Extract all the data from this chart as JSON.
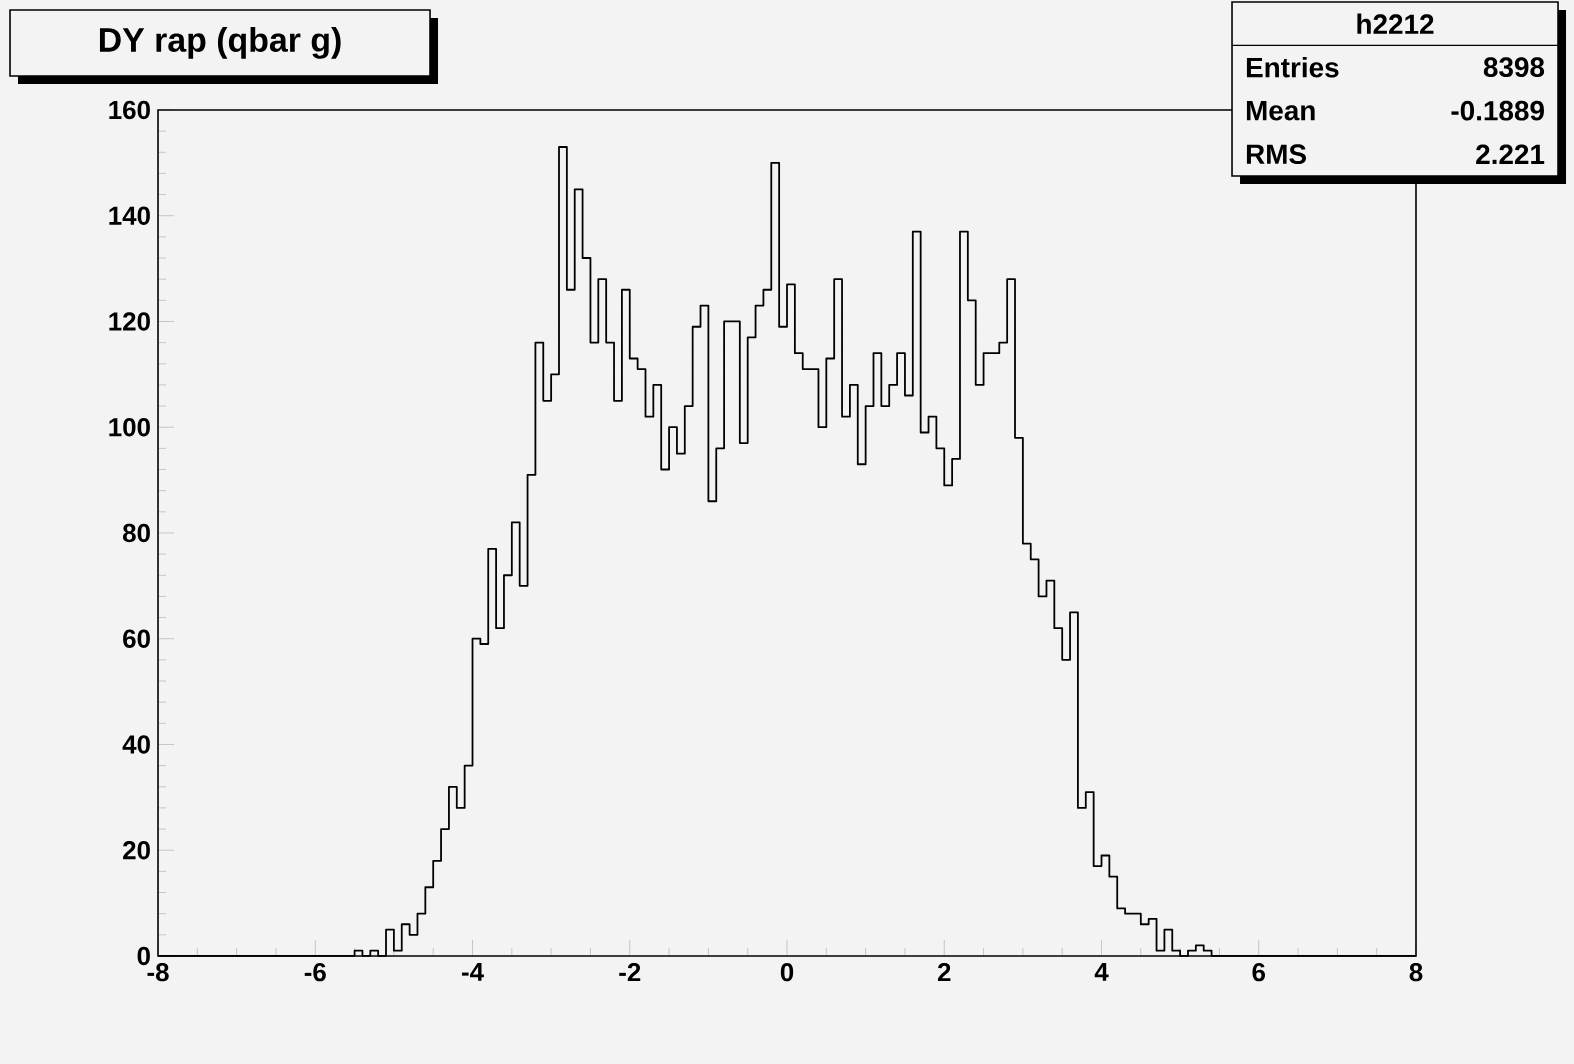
{
  "chart_data": {
    "type": "histogram",
    "title": "DY rap (qbar g)",
    "annotations": [
      "h2212",
      "Entries",
      "8398",
      "Mean",
      "-0.1889",
      "RMS",
      "2.221"
    ],
    "bins": [
      -8.0,
      -7.9,
      -7.8,
      -7.7,
      -7.6,
      -7.5,
      -7.4,
      -7.3,
      -7.2,
      -7.1,
      -7.0,
      -6.9,
      -6.8,
      -6.7,
      -6.6,
      -6.5,
      -6.4,
      -6.3,
      -6.2,
      -6.1,
      -6.0,
      -5.9,
      -5.8,
      -5.7,
      -5.6,
      -5.5,
      -5.4,
      -5.3,
      -5.2,
      -5.1,
      -5.0,
      -4.9,
      -4.8,
      -4.7,
      -4.6,
      -4.5,
      -4.4,
      -4.3,
      -4.2,
      -4.1,
      -4.0,
      -3.9,
      -3.8,
      -3.7,
      -3.6,
      -3.5,
      -3.4,
      -3.3,
      -3.2,
      -3.1,
      -3.0,
      -2.9,
      -2.8,
      -2.7,
      -2.6,
      -2.5,
      -2.4,
      -2.3,
      -2.2,
      -2.1,
      -2.0,
      -1.9,
      -1.8,
      -1.7,
      -1.6,
      -1.5,
      -1.4,
      -1.3,
      -1.2,
      -1.1,
      -1.0,
      -0.9,
      -0.8,
      -0.7,
      -0.6,
      -0.5,
      -0.4,
      -0.3,
      -0.2,
      -0.1,
      0.0,
      0.1,
      0.2,
      0.3,
      0.4,
      0.5,
      0.6,
      0.7,
      0.8,
      0.9,
      1.0,
      1.1,
      1.2,
      1.3,
      1.4,
      1.5,
      1.6,
      1.7,
      1.8,
      1.9,
      2.0,
      2.1,
      2.2,
      2.3,
      2.4,
      2.5,
      2.6,
      2.7,
      2.8,
      2.9,
      3.0,
      3.1,
      3.2,
      3.3,
      3.4,
      3.5,
      3.6,
      3.7,
      3.8,
      3.9,
      4.0,
      4.1,
      4.2,
      4.3,
      4.4,
      4.5,
      4.6,
      4.7,
      4.8,
      4.9,
      5.0,
      5.1,
      5.2,
      5.3,
      5.4,
      5.5,
      5.6,
      5.7,
      5.8,
      5.9,
      6.0,
      6.1,
      6.2,
      6.3,
      6.4,
      6.5,
      6.6,
      6.7,
      6.8,
      6.9,
      7.0,
      7.1,
      7.2,
      7.3,
      7.4,
      7.5,
      7.6,
      7.7,
      7.8,
      7.9,
      8.0
    ],
    "values": [
      0,
      0,
      0,
      0,
      0,
      0,
      0,
      0,
      0,
      0,
      0,
      0,
      0,
      0,
      0,
      0,
      0,
      0,
      0,
      0,
      0,
      0,
      0,
      0,
      0,
      1,
      0,
      1,
      0,
      5,
      1,
      6,
      4,
      8,
      13,
      18,
      24,
      32,
      28,
      36,
      60,
      59,
      77,
      62,
      72,
      82,
      70,
      91,
      116,
      105,
      110,
      153,
      126,
      145,
      132,
      116,
      128,
      116,
      105,
      126,
      113,
      111,
      102,
      108,
      92,
      100,
      95,
      104,
      119,
      123,
      86,
      96,
      120,
      120,
      97,
      117,
      123,
      126,
      150,
      119,
      127,
      114,
      111,
      111,
      100,
      113,
      128,
      102,
      108,
      93,
      104,
      114,
      104,
      108,
      114,
      106,
      137,
      99,
      102,
      96,
      89,
      94,
      137,
      124,
      108,
      114,
      114,
      116,
      128,
      98,
      78,
      75,
      68,
      71,
      62,
      56,
      65,
      28,
      31,
      17,
      19,
      15,
      9,
      8,
      8,
      6,
      7,
      1,
      5,
      1,
      0,
      1,
      2,
      1,
      0,
      0,
      0,
      0,
      0,
      0,
      0,
      0,
      0,
      0,
      0,
      0,
      0,
      0,
      0,
      0,
      0,
      0,
      0,
      0,
      0,
      0,
      0,
      0,
      0,
      0
    ],
    "color": "#000000",
    "xlim": [
      -8,
      8
    ],
    "ylim": [
      0,
      160
    ],
    "xticks": [
      -8,
      -6,
      -4,
      -2,
      0,
      2,
      4,
      6,
      8
    ],
    "yticks": [
      0,
      20,
      40,
      60,
      80,
      100,
      120,
      140,
      160
    ]
  }
}
